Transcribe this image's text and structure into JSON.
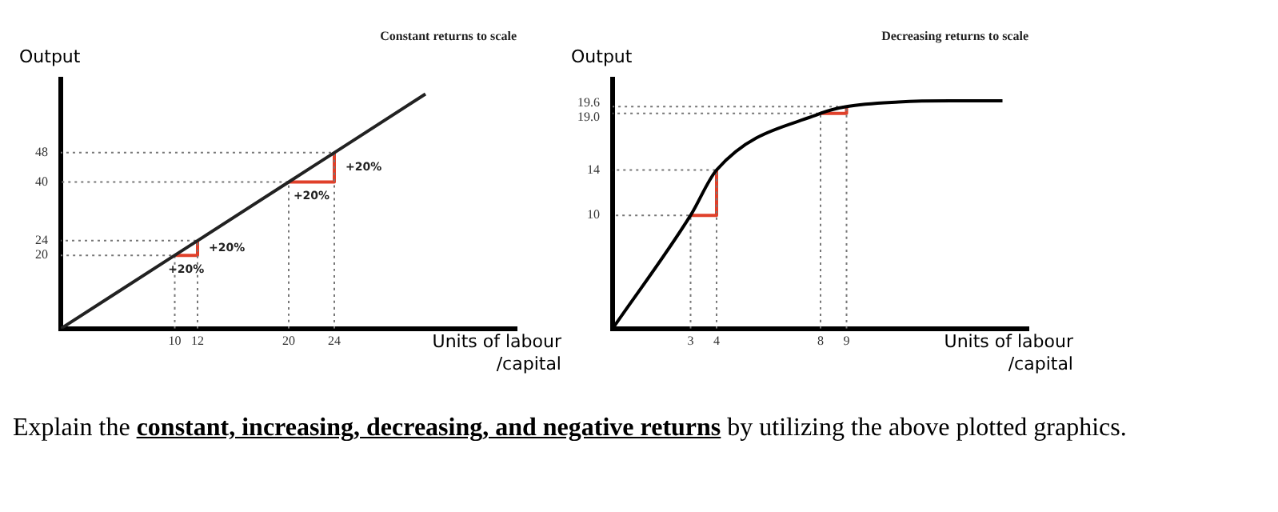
{
  "chart_data": [
    {
      "type": "line",
      "title": "Constant returns to scale",
      "xlabel": "Units of labour /capital",
      "ylabel": "Output",
      "xlim": [
        0,
        40
      ],
      "ylim": [
        0,
        68
      ],
      "xticks": [
        10,
        12,
        20,
        24
      ],
      "yticks": [
        20,
        24,
        40,
        48
      ],
      "grid": false,
      "legend": false,
      "marker": "none",
      "series": [
        {
          "color": "#222222",
          "line_style": "solid",
          "x": [
            0,
            10,
            12,
            20,
            24,
            32
          ],
          "values": [
            0,
            20,
            24,
            40,
            48,
            64
          ]
        },
        {
          "color": "#777777",
          "line_style": "dotted",
          "x": [
            10,
            10,
            0,
            null,
            12,
            12,
            0,
            null,
            20,
            20,
            0,
            null,
            24,
            24,
            0
          ],
          "values": [
            0,
            20,
            20,
            null,
            0,
            24,
            24,
            null,
            0,
            40,
            40,
            null,
            0,
            48,
            48
          ]
        },
        {
          "color": "#e0402a",
          "line_style": "solid",
          "x": [
            10,
            12,
            12,
            null,
            20,
            24,
            24
          ],
          "values": [
            20,
            20,
            24,
            null,
            40,
            40,
            48
          ]
        }
      ],
      "annotations": [
        {
          "text": "+20%",
          "x": 11,
          "y": 20
        },
        {
          "text": "+20%",
          "x": 12,
          "y": 22
        },
        {
          "text": "+20%",
          "x": 22,
          "y": 40
        },
        {
          "text": "+20%",
          "x": 24,
          "y": 44
        }
      ]
    },
    {
      "type": "line",
      "title": "Decreasing returns to scale",
      "xlabel": "Units of labour /capital",
      "ylabel": "Output",
      "xlim": [
        0,
        16
      ],
      "ylim": [
        0,
        22
      ],
      "xticks": [
        3,
        4,
        8,
        9
      ],
      "yticks": [
        10,
        14,
        {
          "value": 19,
          "label": "19.0"
        },
        19.6
      ],
      "grid": false,
      "legend": false,
      "marker": "none",
      "series": [
        {
          "color": "#000000",
          "line_style": "solid",
          "x": [
            0,
            3,
            4,
            8,
            9,
            11,
            13,
            15
          ],
          "values": [
            0,
            10,
            14,
            19,
            19.6,
            20,
            20.1,
            20.1
          ]
        },
        {
          "color": "#777777",
          "line_style": "dotted",
          "x": [
            3,
            3,
            0,
            null,
            4,
            4,
            0,
            null,
            8,
            8,
            0,
            null,
            9,
            9,
            0
          ],
          "values": [
            0,
            10,
            10,
            null,
            0,
            14,
            14,
            null,
            0,
            19,
            19,
            null,
            0,
            19.6,
            19.6
          ]
        },
        {
          "color": "#e0402a",
          "line_style": "solid",
          "x": [
            3,
            4,
            4,
            null,
            8,
            9,
            9
          ],
          "values": [
            10,
            10,
            14,
            null,
            19,
            19,
            19.6
          ]
        }
      ]
    },
    {
      "type": "other",
      "annotations": [
        "Explain the ",
        "constant, increasing, decreasing, and negative returns",
        " by utilizing the above plotted graphics."
      ]
    }
  ]
}
